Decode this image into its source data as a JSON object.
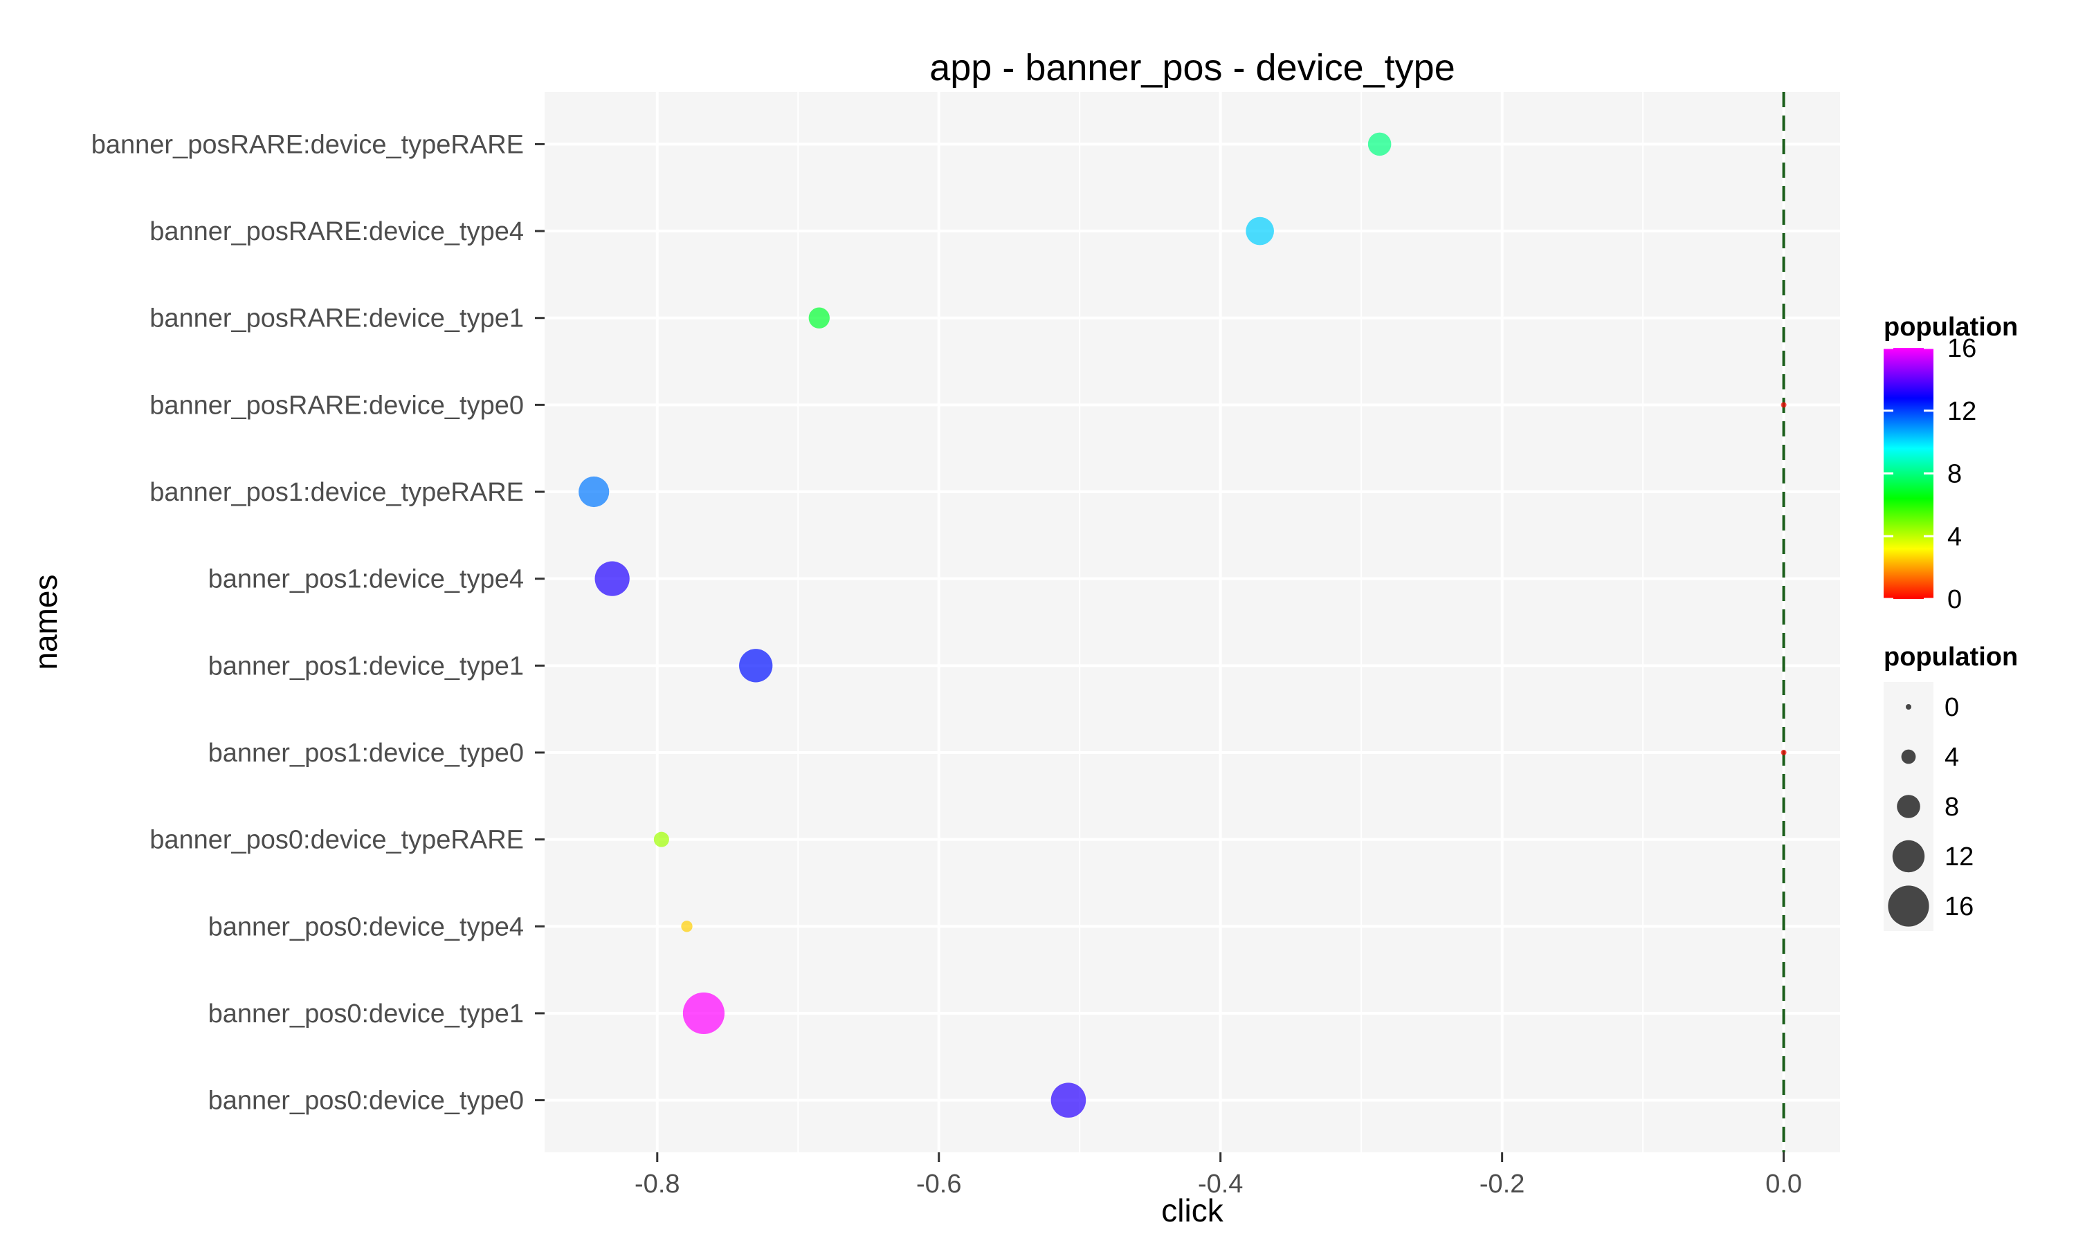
{
  "chart_data": {
    "type": "scatter",
    "title": "app - banner_pos - device_type",
    "xlabel": "click",
    "ylabel": "names",
    "xlim": [
      -0.88,
      0.04
    ],
    "x_ticks": [
      -0.8,
      -0.6,
      -0.4,
      -0.2,
      0.0
    ],
    "x_tick_labels": [
      "-0.8",
      "-0.6",
      "-0.4",
      "-0.2",
      "0.0"
    ],
    "grid": true,
    "reference_line": {
      "x": 0.0,
      "style": "dashed",
      "color": "#1a5e1a"
    },
    "categories": [
      "banner_posRARE:device_typeRARE",
      "banner_posRARE:device_type4",
      "banner_posRARE:device_type1",
      "banner_posRARE:device_type0",
      "banner_pos1:device_typeRARE",
      "banner_pos1:device_type4",
      "banner_pos1:device_type1",
      "banner_pos1:device_type0",
      "banner_pos0:device_typeRARE",
      "banner_pos0:device_type4",
      "banner_pos0:device_type1",
      "banner_pos0:device_type0"
    ],
    "points": [
      {
        "name": "banner_posRARE:device_typeRARE",
        "x": -0.287,
        "population": 8.0
      },
      {
        "name": "banner_posRARE:device_type4",
        "x": -0.372,
        "population": 10.2
      },
      {
        "name": "banner_posRARE:device_type1",
        "x": -0.685,
        "population": 7.0
      },
      {
        "name": "banner_posRARE:device_type0",
        "x": 0.0,
        "population": 0.0
      },
      {
        "name": "banner_pos1:device_typeRARE",
        "x": -0.845,
        "population": 11.3
      },
      {
        "name": "banner_pos1:device_type4",
        "x": -0.832,
        "population": 13.2
      },
      {
        "name": "banner_pos1:device_type1",
        "x": -0.73,
        "population": 12.6
      },
      {
        "name": "banner_pos1:device_type0",
        "x": 0.0,
        "population": 0.0
      },
      {
        "name": "banner_pos0:device_typeRARE",
        "x": -0.797,
        "population": 4.4
      },
      {
        "name": "banner_pos0:device_type4",
        "x": -0.779,
        "population": 2.6
      },
      {
        "name": "banner_pos0:device_type1",
        "x": -0.767,
        "population": 16.3
      },
      {
        "name": "banner_pos0:device_type0",
        "x": -0.508,
        "population": 13.3
      }
    ],
    "legend_color": {
      "title": "population",
      "placement": "right",
      "range": [
        0,
        16
      ],
      "ticks": [
        16,
        12,
        8,
        4,
        0
      ],
      "stops": [
        "#ff0000",
        "#ffff00",
        "#00ff00",
        "#00ffff",
        "#0000ff",
        "#ff00ff"
      ]
    },
    "legend_size": {
      "title": "population",
      "placement": "right",
      "entries": [
        0,
        4,
        8,
        12,
        16
      ]
    },
    "colors": {
      "panel_background": "#f5f5f5",
      "gridline": "#ffffff",
      "point_alpha": 0.7
    }
  }
}
